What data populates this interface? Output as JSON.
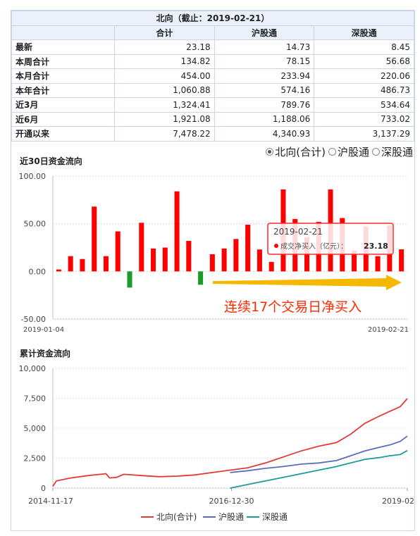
{
  "page_header": "",
  "table": {
    "caption": "北向（截止：2019-02-21）",
    "columns": [
      "",
      "合计",
      "沪股通",
      "深股通"
    ],
    "rows": [
      {
        "label": "最新",
        "values": [
          "23.18",
          "14.73",
          "8.45"
        ]
      },
      {
        "label": "本周合计",
        "values": [
          "134.82",
          "78.15",
          "56.68"
        ]
      },
      {
        "label": "本月合计",
        "values": [
          "454.00",
          "233.94",
          "220.06"
        ]
      },
      {
        "label": "本年合计",
        "values": [
          "1,060.88",
          "574.16",
          "486.73"
        ]
      },
      {
        "label": "近3月",
        "values": [
          "1,324.41",
          "789.76",
          "534.64"
        ]
      },
      {
        "label": "近6月",
        "values": [
          "1,921.08",
          "1,188.06",
          "733.02"
        ]
      },
      {
        "label": "开通以来",
        "values": [
          "7,478.22",
          "4,340.93",
          "3,137.29"
        ]
      }
    ]
  },
  "radio_options": [
    {
      "label": "北向(合计)",
      "selected": true
    },
    {
      "label": "沪股通",
      "selected": false
    },
    {
      "label": "深股通",
      "selected": false
    }
  ],
  "colors": {
    "positive": "#ff0000",
    "negative": "#1a9b2a",
    "north": "#e23a3a",
    "sh": "#5b6bbf",
    "sz": "#1d9a9a",
    "arrow": "#f5b800",
    "annotation": "#ff2a00"
  },
  "chart_data": [
    {
      "type": "bar",
      "title": "近30日资金流向",
      "x_start_label": "2019-01-04",
      "x_end_label": "2019-02-21",
      "ylim": [
        -50,
        100
      ],
      "yticks": [
        "100.00",
        "50.00",
        "0.00",
        "-50.00"
      ],
      "values": [
        2,
        16,
        13,
        68,
        16,
        42,
        -17,
        51,
        24,
        25,
        84,
        32,
        -14,
        18,
        24,
        34,
        49,
        23,
        10,
        86,
        55,
        36,
        52,
        86,
        56,
        22,
        47,
        16,
        48,
        23.18
      ],
      "tooltip": {
        "date": "2019-02-21",
        "label": "成交净买入（亿元）：",
        "value": "23.18"
      },
      "annotation": "连续17个交易日净买入"
    },
    {
      "type": "line",
      "title": "累计资金流向",
      "ylim": [
        0,
        10000
      ],
      "yticks": [
        "10,000",
        "7,500",
        "5,000",
        "2,500",
        "0"
      ],
      "x_labels": [
        "2014-11-17",
        "2016-12-30",
        "2019-02"
      ],
      "series": [
        {
          "name": "北向(合计)",
          "points": [
            [
              0,
              150
            ],
            [
              0.01,
              600
            ],
            [
              0.05,
              850
            ],
            [
              0.1,
              1050
            ],
            [
              0.15,
              1200
            ],
            [
              0.16,
              850
            ],
            [
              0.18,
              900
            ],
            [
              0.2,
              1150
            ],
            [
              0.25,
              1050
            ],
            [
              0.3,
              950
            ],
            [
              0.35,
              1000
            ],
            [
              0.4,
              1100
            ],
            [
              0.45,
              1300
            ],
            [
              0.5,
              1500
            ],
            [
              0.55,
              1700
            ],
            [
              0.6,
              2100
            ],
            [
              0.65,
              2600
            ],
            [
              0.7,
              3100
            ],
            [
              0.75,
              3500
            ],
            [
              0.8,
              3800
            ],
            [
              0.84,
              4500
            ],
            [
              0.88,
              5400
            ],
            [
              0.92,
              6000
            ],
            [
              0.95,
              6400
            ],
            [
              0.98,
              6800
            ],
            [
              1.0,
              7478
            ]
          ]
        },
        {
          "name": "沪股通",
          "points": [
            [
              0.5,
              1300
            ],
            [
              0.55,
              1450
            ],
            [
              0.6,
              1650
            ],
            [
              0.65,
              1800
            ],
            [
              0.7,
              2000
            ],
            [
              0.75,
              2100
            ],
            [
              0.8,
              2300
            ],
            [
              0.84,
              2700
            ],
            [
              0.88,
              3100
            ],
            [
              0.92,
              3400
            ],
            [
              0.95,
              3600
            ],
            [
              0.98,
              3900
            ],
            [
              1.0,
              4341
            ]
          ]
        },
        {
          "name": "深股通",
          "points": [
            [
              0.5,
              0
            ],
            [
              0.55,
              300
            ],
            [
              0.6,
              600
            ],
            [
              0.65,
              900
            ],
            [
              0.7,
              1200
            ],
            [
              0.75,
              1500
            ],
            [
              0.8,
              1800
            ],
            [
              0.84,
              2100
            ],
            [
              0.88,
              2400
            ],
            [
              0.92,
              2550
            ],
            [
              0.95,
              2700
            ],
            [
              0.98,
              2800
            ],
            [
              1.0,
              3137
            ]
          ]
        }
      ]
    }
  ]
}
